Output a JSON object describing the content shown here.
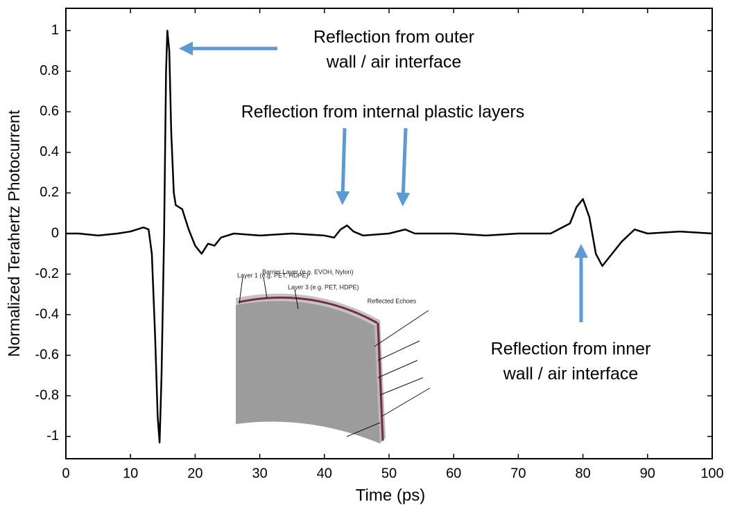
{
  "chart_data": {
    "type": "line",
    "x_label": "Time (ps)",
    "y_label": "Normalized Terahertz Photocurrent",
    "x": [
      0,
      2,
      5,
      8,
      10,
      12,
      12.8,
      13.3,
      13.8,
      14.2,
      14.5,
      14.8,
      15.2,
      15.5,
      15.7,
      16,
      16.3,
      16.7,
      17,
      18,
      19,
      20,
      21,
      22,
      23,
      24,
      26,
      30,
      35,
      40,
      41.5,
      42.5,
      43.5,
      44.5,
      46,
      50,
      52.5,
      54,
      60,
      65,
      70,
      75,
      78,
      79,
      80,
      81,
      82,
      83,
      84,
      86,
      88,
      90,
      95,
      100
    ],
    "values": [
      0,
      0,
      -0.01,
      0,
      0.01,
      0.03,
      0.02,
      -0.1,
      -0.5,
      -0.9,
      -1.03,
      -0.7,
      0,
      0.8,
      1.0,
      0.9,
      0.5,
      0.2,
      0.14,
      0.12,
      0.02,
      -0.06,
      -0.1,
      -0.05,
      -0.06,
      -0.02,
      0,
      -0.01,
      0,
      -0.01,
      -0.02,
      0.02,
      0.04,
      0.01,
      -0.01,
      0,
      0.02,
      0,
      0,
      -0.01,
      0,
      0,
      0.05,
      0.13,
      0.17,
      0.08,
      -0.1,
      -0.16,
      -0.12,
      -0.04,
      0.02,
      0,
      0.01,
      0
    ],
    "color": "#000000",
    "xlim": [
      0,
      100
    ],
    "xticks": [
      0,
      10,
      20,
      30,
      40,
      50,
      60,
      70,
      80,
      90,
      100
    ],
    "ylim": [
      -1.11,
      1.11
    ],
    "yticks": [
      -1,
      -0.8,
      -0.6,
      -0.4,
      -0.2,
      0,
      0.2,
      0.4,
      0.6,
      0.8,
      1
    ],
    "annotations": [
      {
        "lines": [
          "Reflection from outer",
          "wall / air interface"
        ]
      },
      {
        "lines": [
          "Reflection from internal plastic layers"
        ]
      },
      {
        "lines": [
          "Reflection from inner",
          "wall / air interface"
        ]
      }
    ],
    "inset_labels": [
      "Layer 1 (e.g. PET, HDPE)",
      "Barrier Layer (e.g. EVOH, Nylon)",
      "Layer 3 (e.g. PET, HDPE)",
      "Reflected Echoes"
    ]
  }
}
